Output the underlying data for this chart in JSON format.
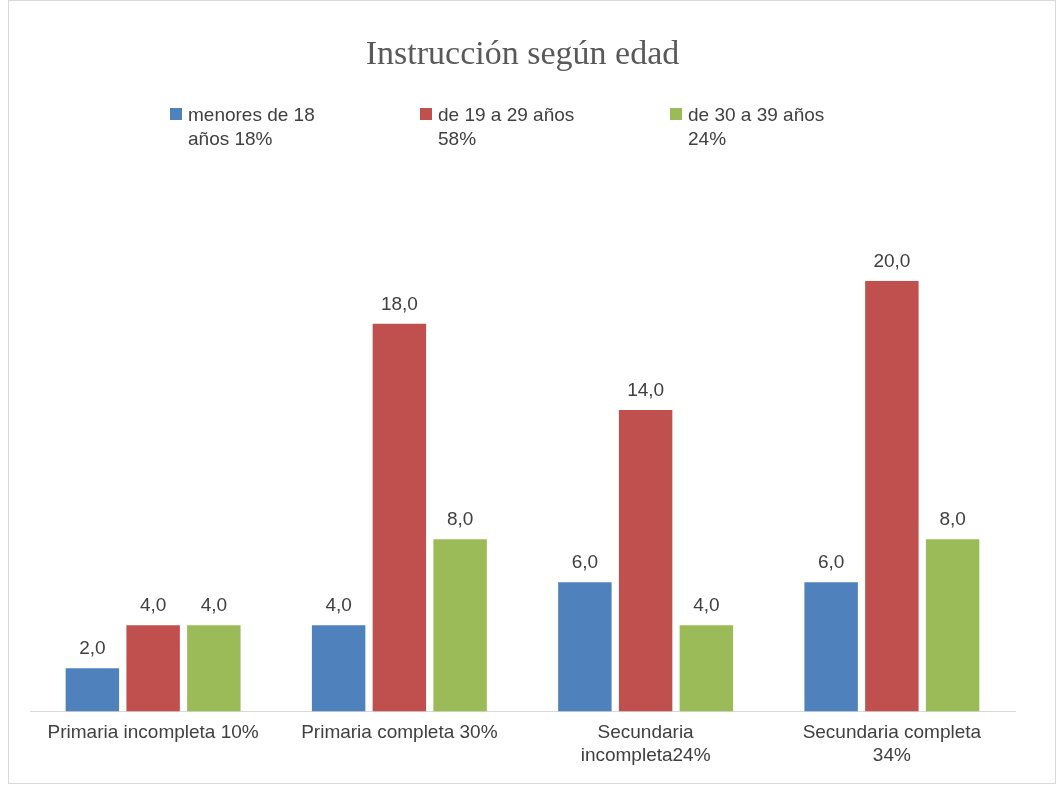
{
  "chart_data": {
    "type": "bar",
    "title": "Instrucción según edad",
    "categories": [
      "Primaria incompleta 10%",
      "Primaria completa 30%",
      "Secundaria incompleta24%",
      "Secundaria completa 34%"
    ],
    "series": [
      {
        "name": "menores de 18 años 18%",
        "color": "#4f81bd",
        "values": [
          2,
          4,
          6,
          6
        ],
        "value_labels": [
          "2,0",
          "4,0",
          "6,0",
          "6,0"
        ]
      },
      {
        "name": "de 19 a 29 años 58%",
        "color": "#c0504d",
        "values": [
          4,
          18,
          14,
          20
        ],
        "value_labels": [
          "4,0",
          "18,0",
          "14,0",
          "20,0"
        ]
      },
      {
        "name": "de 30 a 39 años 24%",
        "color": "#9bbb59",
        "values": [
          4,
          8,
          4,
          8
        ],
        "value_labels": [
          "4,0",
          "8,0",
          "4,0",
          "8,0"
        ]
      }
    ],
    "legend": "top",
    "grid": false
  }
}
